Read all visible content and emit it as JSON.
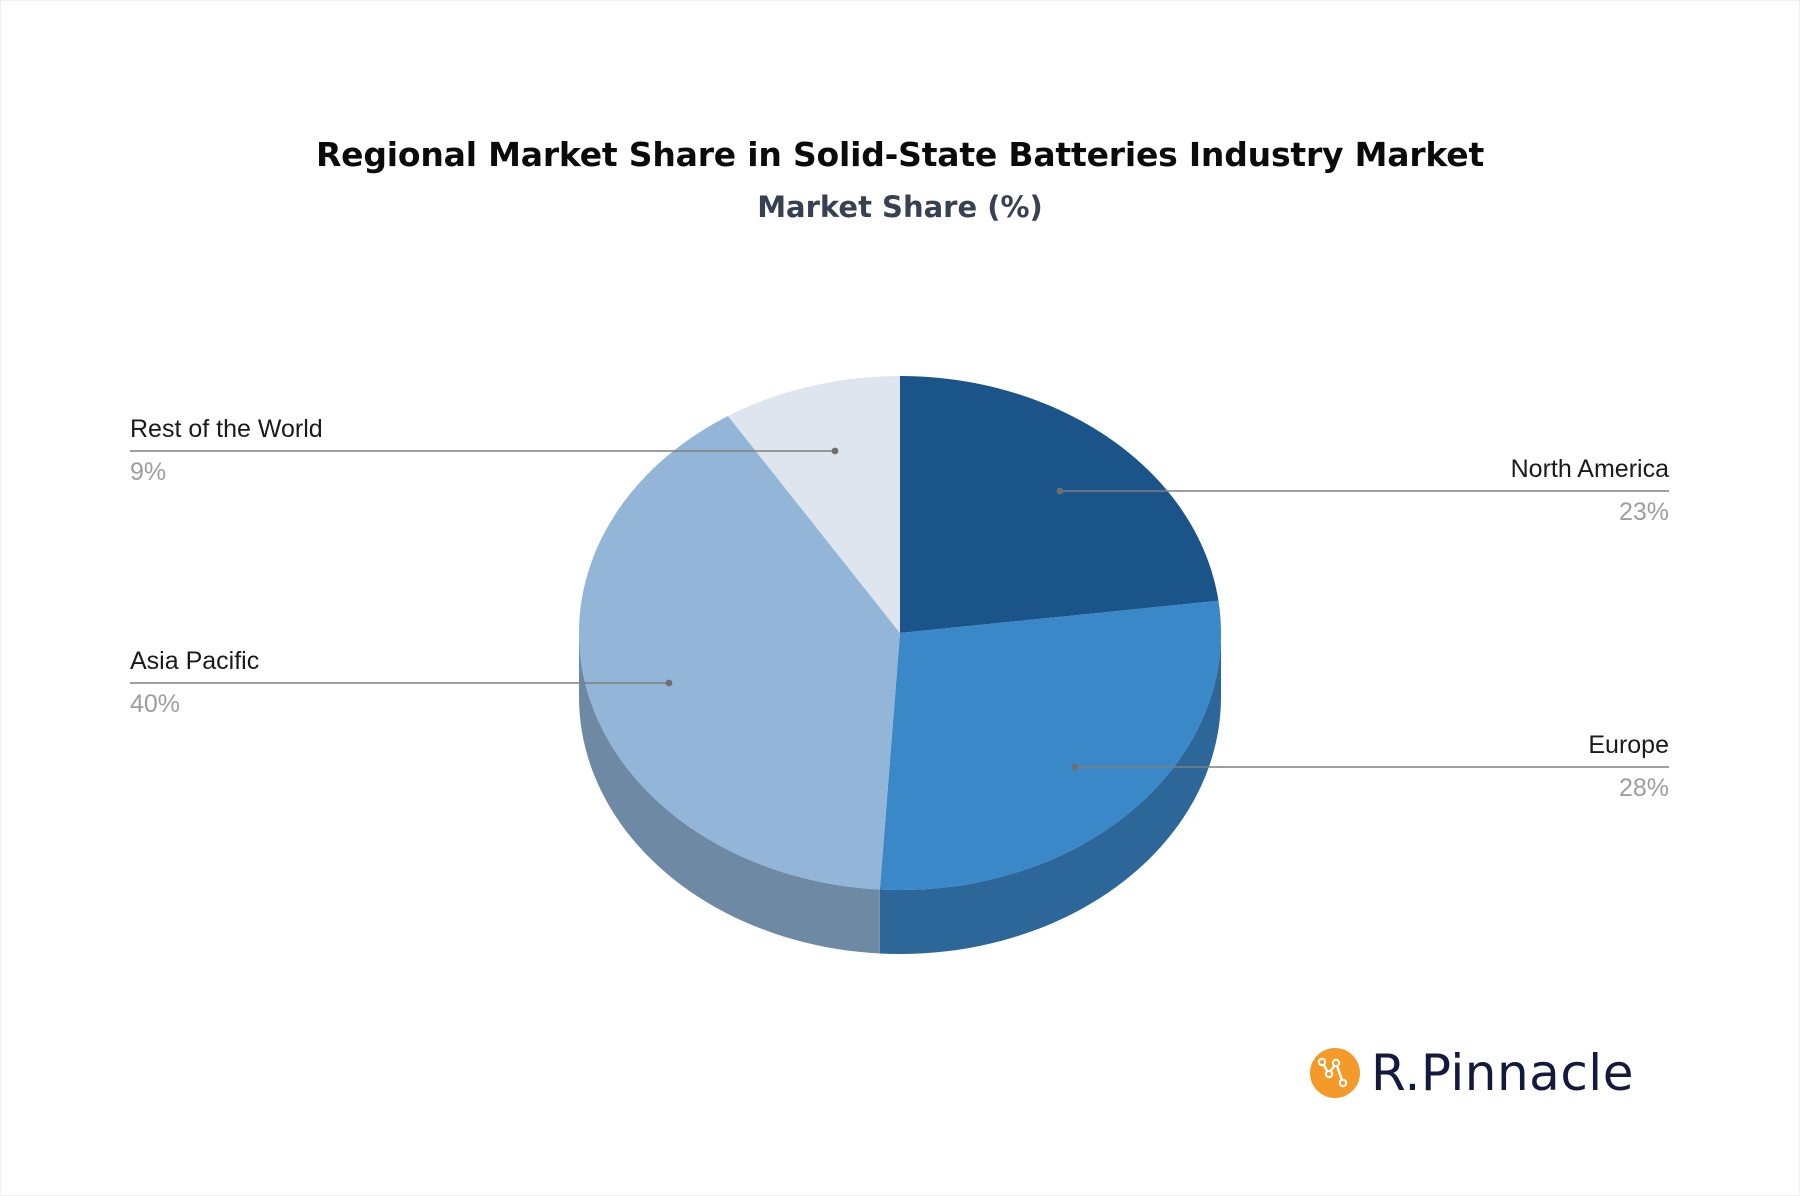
{
  "header": {
    "title": "Regional Market Share in Solid-State Batteries Industry Market",
    "subtitle": "Market Share (%)"
  },
  "chart_data": {
    "type": "pie",
    "style": "3d-pie",
    "title": "Regional Market Share in Solid-State Batteries Industry Market",
    "subtitle": "Market Share (%)",
    "categories": [
      "North America",
      "Europe",
      "Asia Pacific",
      "Rest of the World"
    ],
    "values": [
      23,
      28,
      40,
      9
    ],
    "unit": "%",
    "start_angle": "12 o'clock, clockwise",
    "colors": {
      "top": [
        "#1a5489",
        "#3b88c9",
        "#93b5d7",
        "#dee5ee"
      ],
      "side": [
        "#164877",
        "#2d6698",
        "#6d89a3",
        "#aeb7c2"
      ]
    },
    "labels": [
      {
        "name": "North America",
        "display": "23%",
        "side": "right"
      },
      {
        "name": "Europe",
        "display": "28%",
        "side": "right"
      },
      {
        "name": "Asia Pacific",
        "display": "40%",
        "side": "left"
      },
      {
        "name": "Rest of the World",
        "display": "9%",
        "side": "left"
      }
    ],
    "legend": "none (leader-line labels)"
  },
  "labels": {
    "north_america": {
      "name": "North America",
      "value": "23%"
    },
    "europe": {
      "name": "Europe",
      "value": "28%"
    },
    "asia_pacific": {
      "name": "Asia Pacific",
      "value": "40%"
    },
    "rest_of_world": {
      "name": "Rest of the World",
      "value": "9%"
    }
  },
  "branding": {
    "logo_text": "R.Pinnacle",
    "logo_color": "#f39a2b",
    "text_color": "#141a3d"
  }
}
